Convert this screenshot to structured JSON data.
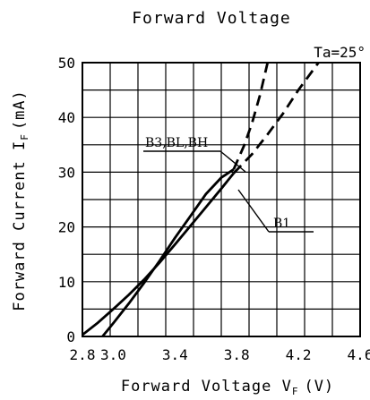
{
  "chart_data": {
    "type": "line",
    "title": "Forward Voltage",
    "condition": "Ta=25°",
    "xlabel": {
      "main": "Forward Voltage V",
      "sub": "F",
      "unit": "(V)"
    },
    "ylabel": {
      "main": "Forward Current I",
      "sub": "F",
      "unit": "(mA)"
    },
    "xlim": [
      2.8,
      4.6
    ],
    "ylim": [
      0,
      50
    ],
    "x_ticks": [
      "2.8",
      "3.0",
      "3.4",
      "3.8",
      "4.2",
      "4.6"
    ],
    "x_tick_values": [
      2.8,
      3.0,
      3.4,
      3.8,
      4.2,
      4.6
    ],
    "y_ticks": [
      "0",
      "10",
      "20",
      "30",
      "40",
      "50"
    ],
    "y_tick_values": [
      0,
      10,
      20,
      30,
      40,
      50
    ],
    "grid": true,
    "series": [
      {
        "name": "B1",
        "dash_from_x": 3.78,
        "color": "#000000",
        "points": [
          [
            2.8,
            0.3
          ],
          [
            2.9,
            2.5
          ],
          [
            3.0,
            5.0
          ],
          [
            3.1,
            7.6
          ],
          [
            3.2,
            10.4
          ],
          [
            3.3,
            13.5
          ],
          [
            3.4,
            16.8
          ],
          [
            3.5,
            20.2
          ],
          [
            3.6,
            23.6
          ],
          [
            3.7,
            27.0
          ],
          [
            3.78,
            29.8
          ],
          [
            3.9,
            33.3
          ],
          [
            4.0,
            36.9
          ],
          [
            4.1,
            40.7
          ],
          [
            4.2,
            45.0
          ],
          [
            4.33,
            50.0
          ]
        ]
      },
      {
        "name": "B3,BL,BH",
        "dash_from_x": 3.78,
        "color": "#000000",
        "points": [
          [
            2.93,
            0.0
          ],
          [
            3.0,
            2.4
          ],
          [
            3.1,
            6.0
          ],
          [
            3.2,
            9.8
          ],
          [
            3.3,
            13.8
          ],
          [
            3.4,
            18.0
          ],
          [
            3.5,
            22.0
          ],
          [
            3.6,
            26.0
          ],
          [
            3.7,
            29.0
          ],
          [
            3.78,
            30.5
          ],
          [
            3.85,
            35.0
          ],
          [
            3.9,
            39.0
          ],
          [
            3.95,
            44.0
          ],
          [
            4.0,
            50.0
          ]
        ]
      }
    ]
  }
}
